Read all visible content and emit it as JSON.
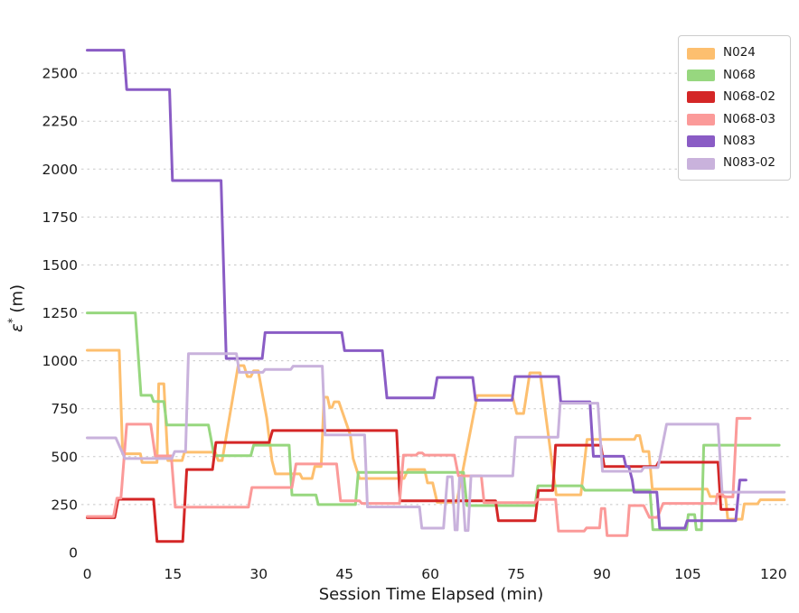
{
  "chart_data": {
    "type": "line",
    "title": "",
    "xlabel": "Session Time Elapsed (min)",
    "ylabel": "ε* (m)",
    "ylabel_parts": {
      "base": "ε",
      "sup": "*",
      "unit": " (m)"
    },
    "x_ticks": [
      0,
      15,
      30,
      45,
      60,
      75,
      90,
      105,
      120
    ],
    "y_ticks": [
      0,
      250,
      500,
      750,
      1000,
      1250,
      1500,
      1750,
      2000,
      2250,
      2500
    ],
    "xlim": [
      0,
      125
    ],
    "ylim": [
      0,
      2750
    ],
    "grid": "horizontal-dashed",
    "grid_color": "#c8c8c8",
    "text_color": "#1a1a1a",
    "legend_position": "upper right",
    "line_width": 3,
    "series": [
      {
        "name": "N024",
        "color": "#fdbf6f",
        "points": [
          [
            0,
            1055
          ],
          [
            5.6,
            1055
          ],
          [
            6.2,
            515
          ],
          [
            9.3,
            515
          ],
          [
            9.6,
            470
          ],
          [
            12.2,
            470
          ],
          [
            12.5,
            880
          ],
          [
            13.4,
            880
          ],
          [
            14.1,
            480
          ],
          [
            16.6,
            480
          ],
          [
            17.0,
            523
          ],
          [
            22.4,
            523
          ],
          [
            22.9,
            480
          ],
          [
            23.6,
            480
          ],
          [
            26.4,
            975
          ],
          [
            27.4,
            975
          ],
          [
            28.0,
            918
          ],
          [
            28.6,
            918
          ],
          [
            29.1,
            948
          ],
          [
            29.9,
            948
          ],
          [
            31.4,
            700
          ],
          [
            32.3,
            480
          ],
          [
            32.9,
            410
          ],
          [
            37.2,
            410
          ],
          [
            37.6,
            386
          ],
          [
            39.3,
            386
          ],
          [
            39.8,
            449
          ],
          [
            40.9,
            449
          ],
          [
            41.4,
            810
          ],
          [
            42.0,
            810
          ],
          [
            42.4,
            757
          ],
          [
            42.8,
            757
          ],
          [
            43.2,
            786
          ],
          [
            44.0,
            786
          ],
          [
            46.0,
            613
          ],
          [
            46.5,
            490
          ],
          [
            47.6,
            386
          ],
          [
            55.4,
            386
          ],
          [
            56.1,
            433
          ],
          [
            59.0,
            433
          ],
          [
            59.5,
            363
          ],
          [
            60.4,
            363
          ],
          [
            61.2,
            262
          ],
          [
            64.6,
            262
          ],
          [
            68.2,
            819
          ],
          [
            74.3,
            819
          ],
          [
            75.1,
            725
          ],
          [
            76.3,
            725
          ],
          [
            77.4,
            937
          ],
          [
            79.2,
            937
          ],
          [
            82.0,
            301
          ],
          [
            86.3,
            301
          ],
          [
            87.4,
            590
          ],
          [
            95.7,
            590
          ],
          [
            96.0,
            610
          ],
          [
            96.6,
            610
          ],
          [
            97.2,
            527
          ],
          [
            98.2,
            527
          ],
          [
            98.8,
            331
          ],
          [
            108.4,
            331
          ],
          [
            108.9,
            292
          ],
          [
            111.6,
            292
          ],
          [
            112.0,
            174
          ],
          [
            114.5,
            174
          ],
          [
            114.9,
            254
          ],
          [
            117.2,
            254
          ],
          [
            117.7,
            275
          ],
          [
            121.9,
            275
          ]
        ]
      },
      {
        "name": "N068",
        "color": "#97d77f",
        "points": [
          [
            0,
            1250
          ],
          [
            8.4,
            1250
          ],
          [
            9.4,
            820
          ],
          [
            11.2,
            820
          ],
          [
            11.6,
            788
          ],
          [
            13.4,
            788
          ],
          [
            13.9,
            665
          ],
          [
            21.2,
            665
          ],
          [
            22.2,
            505
          ],
          [
            28.6,
            505
          ],
          [
            29.1,
            560
          ],
          [
            35.3,
            560
          ],
          [
            35.8,
            300
          ],
          [
            40.0,
            300
          ],
          [
            40.4,
            250
          ],
          [
            46.9,
            250
          ],
          [
            47.4,
            418
          ],
          [
            65.8,
            418
          ],
          [
            66.4,
            245
          ],
          [
            78.3,
            245
          ],
          [
            78.8,
            348
          ],
          [
            86.5,
            348
          ],
          [
            87.0,
            325
          ],
          [
            98.4,
            325
          ],
          [
            98.9,
            119
          ],
          [
            104.8,
            119
          ],
          [
            105.1,
            198
          ],
          [
            106.2,
            198
          ],
          [
            106.5,
            119
          ],
          [
            107.4,
            119
          ],
          [
            107.8,
            560
          ],
          [
            121.0,
            560
          ]
        ]
      },
      {
        "name": "N068-02",
        "color": "#d42626",
        "points": [
          [
            0,
            182
          ],
          [
            4.8,
            182
          ],
          [
            5.4,
            278
          ],
          [
            11.6,
            278
          ],
          [
            12.2,
            58
          ],
          [
            16.7,
            58
          ],
          [
            17.4,
            433
          ],
          [
            21.9,
            433
          ],
          [
            22.5,
            574
          ],
          [
            31.8,
            574
          ],
          [
            32.4,
            636
          ],
          [
            54.1,
            636
          ],
          [
            54.7,
            270
          ],
          [
            71.4,
            270
          ],
          [
            71.9,
            166
          ],
          [
            78.3,
            166
          ],
          [
            78.9,
            324
          ],
          [
            81.4,
            324
          ],
          [
            81.9,
            560
          ],
          [
            89.8,
            560
          ],
          [
            90.4,
            449
          ],
          [
            99.5,
            449
          ],
          [
            99.9,
            471
          ],
          [
            110.3,
            471
          ],
          [
            110.8,
            225
          ],
          [
            113.0,
            225
          ]
        ]
      },
      {
        "name": "N068-03",
        "color": "#fb9a99",
        "points": [
          [
            0,
            188
          ],
          [
            4.6,
            188
          ],
          [
            5.2,
            284
          ],
          [
            5.9,
            284
          ],
          [
            6.9,
            669
          ],
          [
            11.1,
            669
          ],
          [
            11.9,
            504
          ],
          [
            14.7,
            504
          ],
          [
            15.4,
            237
          ],
          [
            28.2,
            237
          ],
          [
            28.8,
            339
          ],
          [
            35.8,
            339
          ],
          [
            36.5,
            462
          ],
          [
            43.6,
            462
          ],
          [
            44.3,
            270
          ],
          [
            47.6,
            270
          ],
          [
            48.0,
            256
          ],
          [
            54.6,
            256
          ],
          [
            55.3,
            508
          ],
          [
            57.5,
            508
          ],
          [
            57.9,
            519
          ],
          [
            58.6,
            519
          ],
          [
            59.0,
            508
          ],
          [
            64.2,
            508
          ],
          [
            64.9,
            400
          ],
          [
            68.9,
            400
          ],
          [
            69.4,
            260
          ],
          [
            78.3,
            260
          ],
          [
            78.7,
            277
          ],
          [
            81.9,
            277
          ],
          [
            82.4,
            112
          ],
          [
            86.9,
            112
          ],
          [
            87.3,
            128
          ],
          [
            89.6,
            128
          ],
          [
            89.9,
            230
          ],
          [
            90.5,
            230
          ],
          [
            90.9,
            88
          ],
          [
            94.4,
            88
          ],
          [
            94.8,
            245
          ],
          [
            97.3,
            245
          ],
          [
            98.3,
            183
          ],
          [
            99.7,
            183
          ],
          [
            100.7,
            256
          ],
          [
            109.9,
            256
          ],
          [
            110.2,
            305
          ],
          [
            111.0,
            305
          ],
          [
            111.4,
            290
          ],
          [
            112.9,
            290
          ],
          [
            113.6,
            700
          ],
          [
            115.9,
            700
          ]
        ]
      },
      {
        "name": "N083",
        "color": "#8a5cc5",
        "points": [
          [
            0,
            2620
          ],
          [
            6.4,
            2620
          ],
          [
            6.9,
            2415
          ],
          [
            14.4,
            2415
          ],
          [
            14.9,
            1940
          ],
          [
            23.4,
            1940
          ],
          [
            24.3,
            1012
          ],
          [
            30.6,
            1012
          ],
          [
            31.1,
            1147
          ],
          [
            44.5,
            1147
          ],
          [
            45.0,
            1053
          ],
          [
            51.6,
            1053
          ],
          [
            52.4,
            806
          ],
          [
            60.6,
            806
          ],
          [
            61.2,
            913
          ],
          [
            67.4,
            913
          ],
          [
            67.9,
            795
          ],
          [
            74.3,
            795
          ],
          [
            74.8,
            918
          ],
          [
            82.4,
            918
          ],
          [
            82.8,
            786
          ],
          [
            87.9,
            786
          ],
          [
            88.5,
            502
          ],
          [
            93.8,
            502
          ],
          [
            94.2,
            449
          ],
          [
            94.7,
            449
          ],
          [
            95.3,
            378
          ],
          [
            95.6,
            315
          ],
          [
            99.6,
            315
          ],
          [
            100.1,
            127
          ],
          [
            104.5,
            127
          ],
          [
            104.9,
            166
          ],
          [
            113.4,
            166
          ],
          [
            114.1,
            378
          ],
          [
            115.2,
            378
          ]
        ]
      },
      {
        "name": "N083-02",
        "color": "#c9b2dc",
        "points": [
          [
            0,
            598
          ],
          [
            5.0,
            598
          ],
          [
            6.6,
            490
          ],
          [
            14.8,
            490
          ],
          [
            15.3,
            527
          ],
          [
            17.2,
            527
          ],
          [
            17.7,
            1037
          ],
          [
            26.1,
            1037
          ],
          [
            26.6,
            940
          ],
          [
            30.7,
            940
          ],
          [
            31.1,
            955
          ],
          [
            35.6,
            955
          ],
          [
            36.0,
            972
          ],
          [
            41.1,
            972
          ],
          [
            41.6,
            613
          ],
          [
            48.5,
            613
          ],
          [
            49.0,
            238
          ],
          [
            58.1,
            238
          ],
          [
            58.5,
            127
          ],
          [
            62.3,
            127
          ],
          [
            63.0,
            395
          ],
          [
            63.8,
            395
          ],
          [
            64.3,
            118
          ],
          [
            64.7,
            118
          ],
          [
            65.1,
            390
          ],
          [
            65.5,
            390
          ],
          [
            66.1,
            115
          ],
          [
            66.6,
            115
          ],
          [
            67.1,
            400
          ],
          [
            74.4,
            400
          ],
          [
            74.9,
            602
          ],
          [
            82.3,
            602
          ],
          [
            82.7,
            779
          ],
          [
            89.3,
            779
          ],
          [
            90.1,
            424
          ],
          [
            96.9,
            424
          ],
          [
            97.3,
            443
          ],
          [
            99.8,
            443
          ],
          [
            101.3,
            669
          ],
          [
            110.3,
            669
          ],
          [
            111.0,
            315
          ],
          [
            121.9,
            315
          ]
        ]
      }
    ]
  }
}
